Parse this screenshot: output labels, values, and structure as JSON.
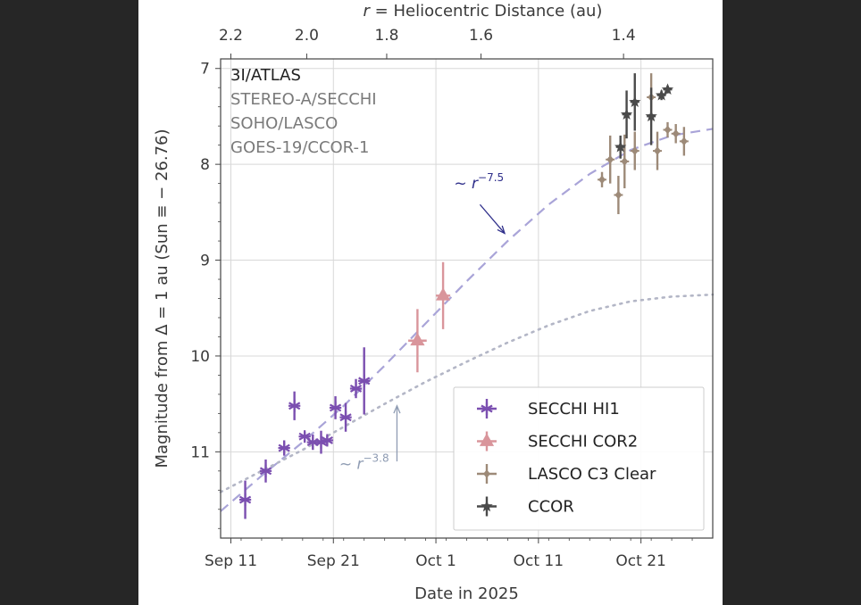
{
  "colors": {
    "hi1": "#7b4fb0",
    "cor2": "#d9959b",
    "c3": "#9d8a78",
    "ccor": "#4a4a4a",
    "fit_dashed": "#a9a4d8",
    "fit_dotted": "#b3b6c6",
    "arrow_dark": "#2e2e8a",
    "arrow_light": "#8f9cb3",
    "grid": "#d8d8d8"
  },
  "chart_data": {
    "type": "scatter",
    "xlabel": "Date in 2025",
    "ylabel": "Magnitude from Δ = 1 au (Sun ≡ − 26.76)",
    "top_xlabel": "r = Heliocentric Distance (au)",
    "x_unit": "day of September 2025 (Oct 1 = 31)",
    "xlim": [
      10,
      58
    ],
    "ylim": [
      11.9,
      6.9
    ],
    "y_inverted": true,
    "grid": true,
    "x_ticks": [
      {
        "value": 11,
        "label": "Sep 11"
      },
      {
        "value": 21,
        "label": "Sep 21"
      },
      {
        "value": 31,
        "label": "Oct 1"
      },
      {
        "value": 41,
        "label": "Oct 11"
      },
      {
        "value": 51,
        "label": "Oct 21"
      }
    ],
    "y_ticks": [
      {
        "value": 7,
        "label": "7"
      },
      {
        "value": 8,
        "label": "8"
      },
      {
        "value": 9,
        "label": "9"
      },
      {
        "value": 10,
        "label": "10"
      },
      {
        "value": 11,
        "label": "11"
      }
    ],
    "top_ticks": [
      {
        "value": 11.0,
        "label": "2.2"
      },
      {
        "value": 18.4,
        "label": "2.0"
      },
      {
        "value": 26.2,
        "label": "1.8"
      },
      {
        "value": 35.4,
        "label": "1.6"
      },
      {
        "value": 49.3,
        "label": "1.4"
      }
    ],
    "textbox": [
      {
        "text": "3I/ATLAS",
        "color": "#222222"
      },
      {
        "text": "STEREO-A/SECCHI",
        "color": "#7a7a7a"
      },
      {
        "text": "SOHO/LASCO",
        "color": "#7a7a7a"
      },
      {
        "text": "GOES-19/CCOR-1",
        "color": "#7a7a7a"
      }
    ],
    "fits": [
      {
        "name": "~ r^-7.5",
        "style": "dashed",
        "x": [
          10,
          14,
          18,
          22,
          26,
          30,
          34,
          38,
          42,
          46,
          50,
          54,
          58
        ],
        "y": [
          11.62,
          11.25,
          10.9,
          10.52,
          10.1,
          9.66,
          9.22,
          8.8,
          8.42,
          8.1,
          7.85,
          7.7,
          7.63
        ]
      },
      {
        "name": "~ r^-3.8",
        "style": "dotted",
        "x": [
          10,
          14,
          18,
          22,
          26,
          30,
          34,
          38,
          42,
          46,
          50,
          54,
          58
        ],
        "y": [
          11.42,
          11.2,
          10.98,
          10.74,
          10.5,
          10.27,
          10.06,
          9.86,
          9.68,
          9.53,
          9.43,
          9.38,
          9.36
        ]
      }
    ],
    "annotations": [
      {
        "base": "~ r",
        "exp": "−7.5",
        "x": 35.2,
        "y": 8.25
      },
      {
        "base": "~ r",
        "exp": "−3.8",
        "x": 24.0,
        "y": 11.18
      }
    ],
    "series": [
      {
        "name": "SECCHI HI1",
        "marker": "asterisk",
        "points": [
          {
            "x": 12.4,
            "y": 11.5,
            "yerr": 0.2
          },
          {
            "x": 14.4,
            "y": 11.2,
            "yerr": 0.12
          },
          {
            "x": 16.2,
            "y": 10.96,
            "yerr": 0.08
          },
          {
            "x": 17.2,
            "y": 10.52,
            "yerr": 0.15
          },
          {
            "x": 18.2,
            "y": 10.84,
            "yerr": 0.05
          },
          {
            "x": 19.0,
            "y": 10.9,
            "yerr": 0.08
          },
          {
            "x": 19.8,
            "y": 10.9,
            "yerr": 0.12
          },
          {
            "x": 20.4,
            "y": 10.88,
            "yerr": 0.05
          },
          {
            "x": 21.2,
            "y": 10.54,
            "yerr": 0.12
          },
          {
            "x": 22.2,
            "y": 10.64,
            "yerr": 0.15
          },
          {
            "x": 23.2,
            "y": 10.34,
            "yerr": 0.1
          },
          {
            "x": 24.0,
            "y": 10.26,
            "yerr": 0.35
          }
        ]
      },
      {
        "name": "SECCHI COR2",
        "marker": "triangle",
        "points": [
          {
            "x": 29.2,
            "y": 9.84,
            "yerr": 0.33,
            "xerr": 0.9
          },
          {
            "x": 31.7,
            "y": 9.37,
            "yerr": 0.35,
            "xerr": 0.7
          }
        ]
      },
      {
        "name": "LASCO C3 Clear",
        "marker": "diamond",
        "points": [
          {
            "x": 47.2,
            "y": 8.16,
            "yerr": 0.08
          },
          {
            "x": 48.0,
            "y": 7.95,
            "yerr": 0.25
          },
          {
            "x": 48.8,
            "y": 8.32,
            "yerr": 0.2
          },
          {
            "x": 49.4,
            "y": 7.97,
            "yerr": 0.28
          },
          {
            "x": 50.4,
            "y": 7.86,
            "yerr": 0.2
          },
          {
            "x": 52.0,
            "y": 7.3,
            "yerr": 0.25
          },
          {
            "x": 52.6,
            "y": 7.86,
            "yerr": 0.2
          },
          {
            "x": 53.6,
            "y": 7.64,
            "yerr": 0.08
          },
          {
            "x": 54.4,
            "y": 7.68,
            "yerr": 0.1
          },
          {
            "x": 55.2,
            "y": 7.76,
            "yerr": 0.15
          }
        ]
      },
      {
        "name": "CCOR",
        "marker": "star",
        "points": [
          {
            "x": 49.0,
            "y": 7.82,
            "yerr": 0.12
          },
          {
            "x": 49.6,
            "y": 7.48,
            "yerr": 0.25
          },
          {
            "x": 50.4,
            "y": 7.35,
            "yerr": 0.3
          },
          {
            "x": 52.0,
            "y": 7.5,
            "yerr": 0.3
          },
          {
            "x": 53.0,
            "y": 7.28,
            "yerr": 0.05
          },
          {
            "x": 53.6,
            "y": 7.22,
            "yerr": 0.04
          }
        ]
      }
    ],
    "legend": [
      {
        "label": "SECCHI HI1"
      },
      {
        "label": "SECCHI COR2"
      },
      {
        "label": "LASCO C3 Clear"
      },
      {
        "label": "CCOR"
      }
    ],
    "legend_position": "lower-right"
  }
}
